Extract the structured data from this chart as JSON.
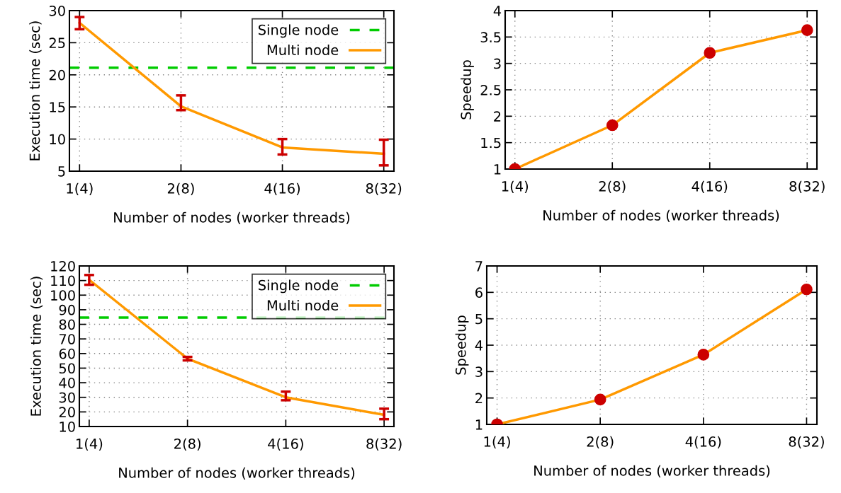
{
  "chart_data": [
    {
      "type": "line",
      "xlabel": "Number of nodes (worker threads)",
      "ylabel": "Execution time (sec)",
      "categories": [
        "1(4)",
        "2(8)",
        "4(16)",
        "8(32)"
      ],
      "ylim": [
        5,
        30
      ],
      "yticks": [
        5,
        10,
        15,
        20,
        25,
        30
      ],
      "grid": true,
      "legend": "top right",
      "ref_lines": [
        {
          "axis": "y",
          "value": 21.1,
          "label": "Single node",
          "color": "#00cc00",
          "line_style": "dashed"
        }
      ],
      "series": [
        {
          "name": "Multi node",
          "color": "#ff9900",
          "values": [
            28.1,
            15.1,
            8.7,
            7.7
          ],
          "errors": [
            [
              27.1,
              29.0
            ],
            [
              14.5,
              16.8
            ],
            [
              7.6,
              10.0
            ],
            [
              5.9,
              9.9
            ]
          ]
        }
      ]
    },
    {
      "type": "line",
      "xlabel": "Number of nodes (worker threads)",
      "ylabel": "Speedup",
      "categories": [
        "1(4)",
        "2(8)",
        "4(16)",
        "8(32)"
      ],
      "ylim": [
        1,
        4
      ],
      "yticks": [
        1,
        1.5,
        2,
        2.5,
        3,
        3.5,
        4
      ],
      "grid": true,
      "marker": "circle",
      "series": [
        {
          "color": "#ff9900",
          "values": [
            1.0,
            1.83,
            3.2,
            3.63
          ]
        }
      ]
    },
    {
      "type": "line",
      "xlabel": "Number of nodes (worker threads)",
      "ylabel": "Execution time (sec)",
      "categories": [
        "1(4)",
        "2(8)",
        "4(16)",
        "8(32)"
      ],
      "ylim": [
        10,
        120
      ],
      "yticks": [
        10,
        20,
        30,
        40,
        50,
        60,
        70,
        80,
        90,
        100,
        110,
        120
      ],
      "grid": true,
      "legend": "top right",
      "ref_lines": [
        {
          "axis": "y",
          "value": 84.6,
          "label": "Single node",
          "color": "#00cc00",
          "line_style": "dashed"
        }
      ],
      "series": [
        {
          "name": "Multi node",
          "color": "#ff9900",
          "values": [
            110.5,
            56.5,
            30.0,
            18.0
          ],
          "errors": [
            [
              107.1,
              113.8
            ],
            [
              55.3,
              57.7
            ],
            [
              28.0,
              33.9
            ],
            [
              15.0,
              22.2
            ]
          ]
        }
      ]
    },
    {
      "type": "line",
      "xlabel": "Number of nodes (worker threads)",
      "ylabel": "Speedup",
      "categories": [
        "1(4)",
        "2(8)",
        "4(16)",
        "8(32)"
      ],
      "ylim": [
        1,
        7
      ],
      "yticks": [
        1,
        2,
        3,
        4,
        5,
        6,
        7
      ],
      "grid": true,
      "marker": "circle",
      "series": [
        {
          "color": "#ff9900",
          "values": [
            1.0,
            1.94,
            3.64,
            6.11
          ]
        }
      ]
    }
  ]
}
